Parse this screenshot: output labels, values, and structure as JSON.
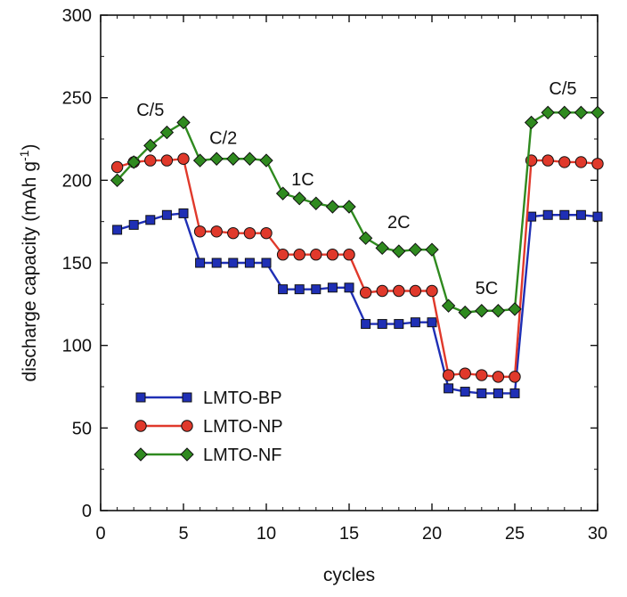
{
  "chart_data": {
    "type": "line",
    "xlabel": "cycles",
    "ylabel": "discharge capacity (mAh g",
    "ylabel_sup": "-1",
    "ylabel_close": ")",
    "xlim": [
      0,
      30
    ],
    "ylim": [
      0,
      300
    ],
    "xticks": [
      0,
      5,
      10,
      15,
      20,
      25,
      30
    ],
    "yticks": [
      0,
      50,
      100,
      150,
      200,
      250,
      300
    ],
    "grid": false,
    "legend_position": "bottom-left",
    "x": [
      1,
      2,
      3,
      4,
      5,
      6,
      7,
      8,
      9,
      10,
      11,
      12,
      13,
      14,
      15,
      16,
      17,
      18,
      19,
      20,
      21,
      22,
      23,
      24,
      25,
      26,
      27,
      28,
      29,
      30
    ],
    "series": [
      {
        "name": "LMTO-BP",
        "color": "#1f2fb5",
        "marker": "square",
        "values": [
          170,
          173,
          176,
          179,
          180,
          150,
          150,
          150,
          150,
          150,
          134,
          134,
          134,
          135,
          135,
          113,
          113,
          113,
          114,
          114,
          74,
          72,
          71,
          71,
          71,
          178,
          179,
          179,
          179,
          178
        ]
      },
      {
        "name": "LMTO-NP",
        "color": "#e0392b",
        "marker": "circle",
        "values": [
          208,
          211,
          212,
          212,
          213,
          169,
          169,
          168,
          168,
          168,
          155,
          155,
          155,
          155,
          155,
          132,
          133,
          133,
          133,
          133,
          82,
          83,
          82,
          81,
          81,
          212,
          212,
          211,
          211,
          210
        ]
      },
      {
        "name": "LMTO-NF",
        "color": "#2f8a1f",
        "marker": "diamond",
        "values": [
          200,
          211,
          221,
          229,
          235,
          212,
          213,
          213,
          213,
          212,
          192,
          189,
          186,
          184,
          184,
          165,
          159,
          157,
          158,
          158,
          124,
          120,
          121,
          121,
          122,
          235,
          241,
          241,
          241,
          241
        ]
      }
    ],
    "annotations": [
      {
        "text": "C/5",
        "x": 3.0,
        "y": 239
      },
      {
        "text": "C/2",
        "x": 7.4,
        "y": 222
      },
      {
        "text": "1C",
        "x": 12.2,
        "y": 197
      },
      {
        "text": "2C",
        "x": 18.0,
        "y": 171
      },
      {
        "text": "5C",
        "x": 23.3,
        "y": 131
      },
      {
        "text": "C/5",
        "x": 27.9,
        "y": 252
      }
    ]
  }
}
